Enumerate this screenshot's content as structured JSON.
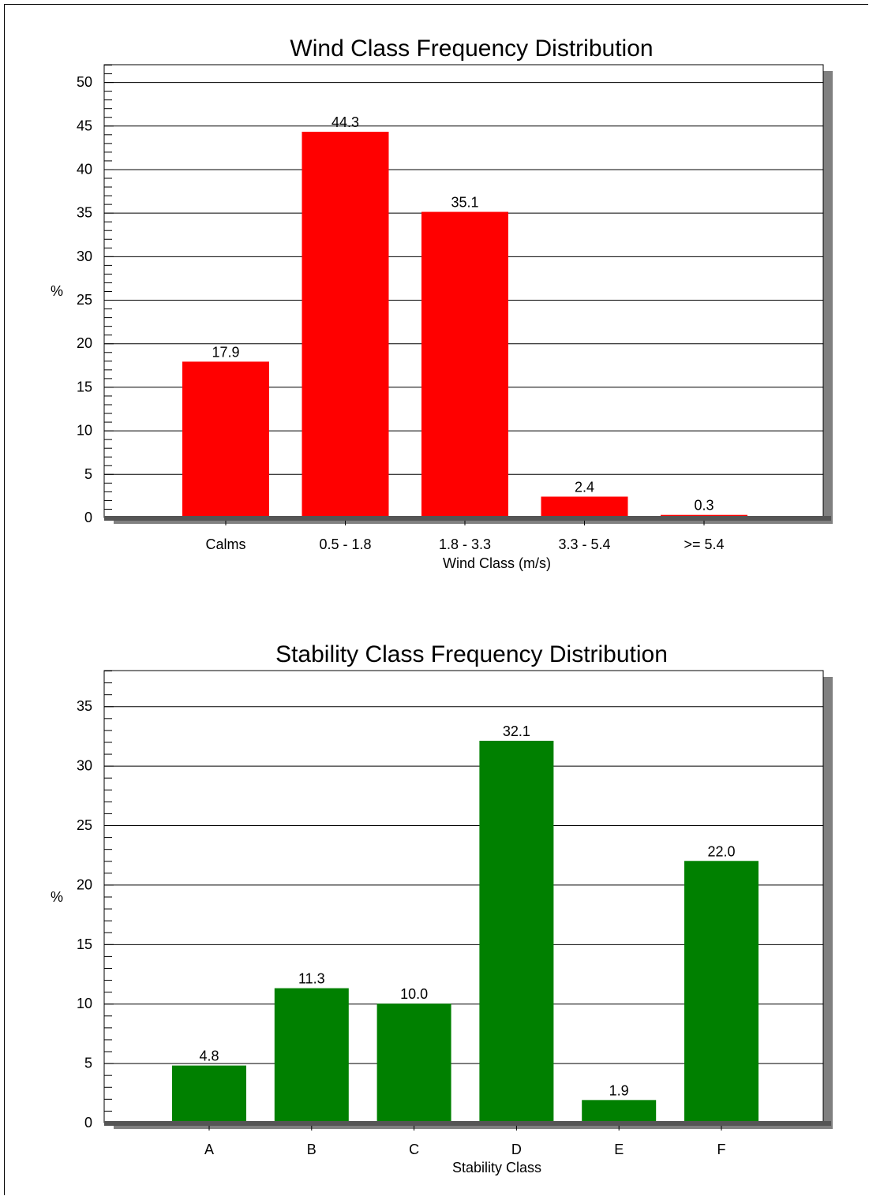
{
  "chart_data": [
    {
      "type": "bar",
      "title": "Wind Class Frequency Distribution",
      "xlabel": "Wind Class (m/s)",
      "ylabel": "%",
      "categories": [
        "Calms",
        "0.5 -  1.8",
        "1.8 -  3.3",
        "3.3 -  5.4",
        ">=  5.4"
      ],
      "values": [
        17.9,
        44.3,
        35.1,
        2.4,
        0.3
      ],
      "data_labels": [
        "17.9",
        "44.3",
        "35.1",
        "2.4",
        "0.3"
      ],
      "ylim": [
        0,
        52
      ],
      "yticks": [
        0,
        5,
        10,
        15,
        20,
        25,
        30,
        35,
        40,
        45,
        50
      ],
      "minor_step": 1,
      "grid": true,
      "color": "#ff0000"
    },
    {
      "type": "bar",
      "title": "Stability Class Frequency Distribution",
      "xlabel": "Stability Class",
      "ylabel": "%",
      "categories": [
        "A",
        "B",
        "C",
        "D",
        "E",
        "F"
      ],
      "values": [
        4.8,
        11.3,
        10.0,
        32.1,
        1.9,
        22.0
      ],
      "data_labels": [
        "4.8",
        "11.3",
        "10.0",
        "32.1",
        "1.9",
        "22.0"
      ],
      "ylim": [
        0,
        38
      ],
      "yticks": [
        0,
        5,
        10,
        15,
        20,
        25,
        30,
        35
      ],
      "minor_step": 1,
      "grid": true,
      "color": "#008000"
    }
  ]
}
